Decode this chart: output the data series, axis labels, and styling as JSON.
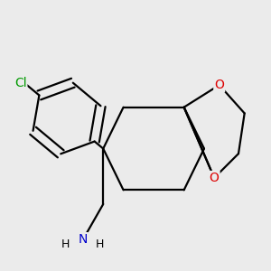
{
  "background_color": "#ebebeb",
  "atom_colors": {
    "C": "#000000",
    "N": "#0000cc",
    "O": "#dd0000",
    "Cl": "#009900",
    "H": "#000000"
  },
  "bond_color": "#000000",
  "bond_width": 1.6,
  "figsize": [
    3.0,
    3.0
  ],
  "dpi": 100
}
